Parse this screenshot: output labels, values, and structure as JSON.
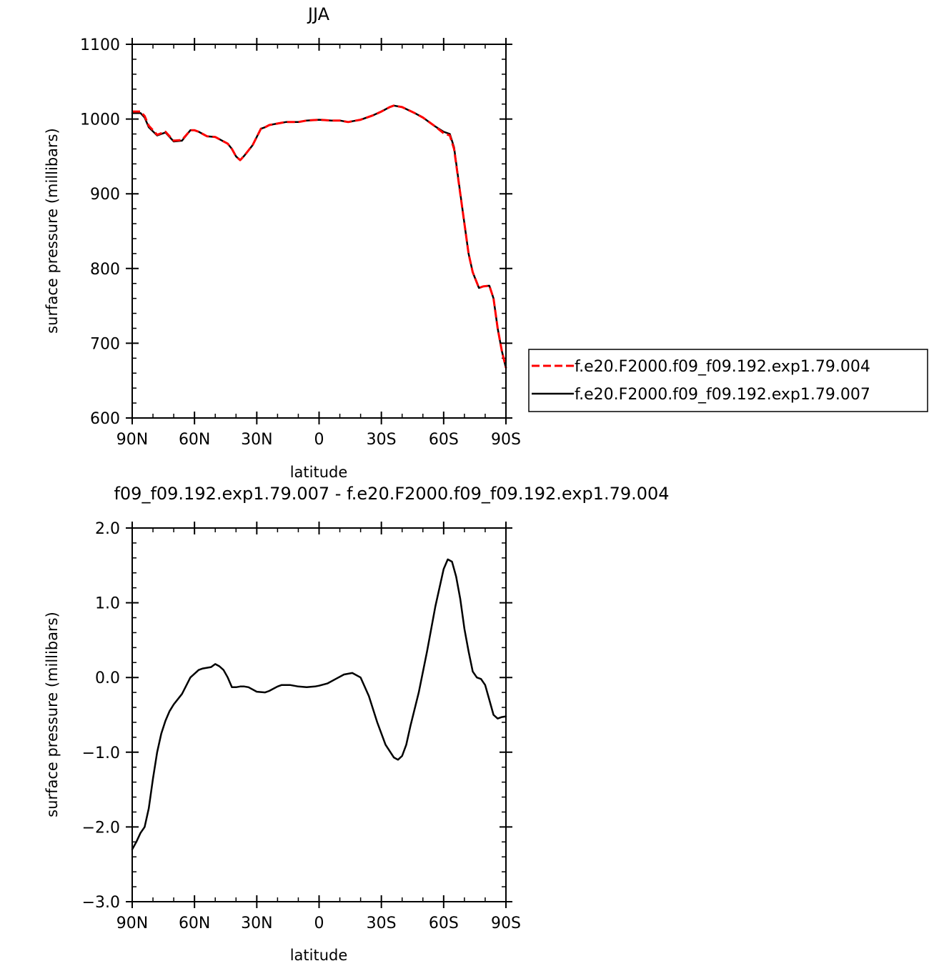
{
  "chart_data": [
    {
      "type": "line",
      "title": "JJA",
      "xlabel": "latitude",
      "ylabel": "surface pressure (millibars)",
      "xlim": [
        90,
        -90
      ],
      "ylim": [
        600,
        1100
      ],
      "x_ticks": [
        90,
        60,
        30,
        0,
        -30,
        -60,
        -90
      ],
      "x_tick_labels": [
        "90N",
        "60N",
        "30N",
        "0",
        "30S",
        "60S",
        "90S"
      ],
      "y_ticks": [
        600,
        700,
        800,
        900,
        1000,
        1100
      ],
      "y_tick_labels": [
        "600",
        "700",
        "800",
        "900",
        "1000",
        "1100"
      ],
      "grid": false,
      "legend_position": "outside-right-bottom",
      "series": [
        {
          "name": "f.e20.F2000.f09_f09.192.exp1.79.004",
          "color": "#ff0000",
          "dash": "dashed",
          "x": [
            90,
            86,
            84,
            82,
            78,
            74,
            72,
            70,
            66,
            62,
            60,
            58,
            54,
            50,
            44,
            42,
            40,
            38,
            36,
            34,
            32,
            28,
            26,
            24,
            20,
            16,
            14,
            10,
            6,
            0,
            -6,
            -10,
            -14,
            -16,
            -20,
            -26,
            -30,
            -34,
            -36,
            -40,
            -46,
            -50,
            -56,
            -60,
            -63,
            -65,
            -67,
            -70,
            -72,
            -74,
            -77,
            -79,
            -82,
            -84,
            -86,
            -88,
            -90
          ],
          "values": [
            1010,
            1010,
            1004,
            991,
            979,
            983,
            977,
            971,
            972,
            985,
            985,
            983,
            977,
            976,
            967,
            960,
            950,
            945,
            951,
            958,
            965,
            987,
            989,
            992,
            994,
            996,
            996,
            996,
            998,
            999,
            998,
            998,
            996,
            997,
            999,
            1005,
            1010,
            1016,
            1018,
            1016,
            1008,
            1002,
            990,
            981,
            978,
            960,
            920,
            860,
            820,
            795,
            774,
            776,
            777,
            760,
            720,
            690,
            667
          ]
        },
        {
          "name": "f.e20.F2000.f09_f09.192.exp1.79.007",
          "color": "#000000",
          "dash": "solid",
          "x": [
            90,
            86,
            84,
            82,
            78,
            74,
            72,
            70,
            66,
            62,
            60,
            58,
            54,
            50,
            44,
            42,
            40,
            38,
            36,
            34,
            32,
            28,
            26,
            24,
            20,
            16,
            14,
            10,
            6,
            0,
            -6,
            -10,
            -14,
            -16,
            -20,
            -26,
            -30,
            -34,
            -36,
            -40,
            -46,
            -50,
            -56,
            -60,
            -63,
            -65,
            -67,
            -70,
            -72,
            -74,
            -77,
            -79,
            -82,
            -84,
            -86,
            -88,
            -90
          ],
          "values": [
            1008,
            1008,
            1002,
            989,
            978,
            982,
            976,
            970,
            971,
            985,
            985,
            983,
            977,
            976,
            967,
            960,
            950,
            945,
            951,
            958,
            965,
            987,
            989,
            992,
            994,
            996,
            996,
            996,
            998,
            999,
            998,
            998,
            996,
            997,
            999,
            1005,
            1010,
            1016,
            1018,
            1016,
            1008,
            1002,
            990,
            983,
            980,
            962,
            921,
            860,
            820,
            795,
            774,
            776,
            777,
            760,
            720,
            690,
            667
          ]
        }
      ]
    },
    {
      "type": "line",
      "title": "f09_f09.192.exp1.79.007 - f.e20.F2000.f09_f09.192.exp1.79.004",
      "xlabel": "latitude",
      "ylabel": "surface pressure (millibars)",
      "xlim": [
        90,
        -90
      ],
      "ylim": [
        -3.0,
        2.0
      ],
      "x_ticks": [
        90,
        60,
        30,
        0,
        -30,
        -60,
        -90
      ],
      "x_tick_labels": [
        "90N",
        "60N",
        "30N",
        "0",
        "30S",
        "60S",
        "90S"
      ],
      "y_ticks": [
        -3.0,
        -2.0,
        -1.0,
        0.0,
        1.0,
        2.0
      ],
      "y_tick_labels": [
        "−3.0",
        "−2.0",
        "−1.0",
        "0.0",
        "1.0",
        "2.0"
      ],
      "grid": false,
      "series": [
        {
          "color": "#000000",
          "dash": "solid",
          "x": [
            90,
            88,
            86,
            84,
            82,
            80,
            78,
            76,
            74,
            72,
            70,
            66,
            62,
            58,
            56,
            54,
            52,
            50,
            48,
            46,
            44,
            42,
            40,
            38,
            36,
            34,
            30,
            26,
            24,
            22,
            20,
            18,
            14,
            10,
            6,
            2,
            0,
            -4,
            -8,
            -12,
            -16,
            -20,
            -24,
            -28,
            -32,
            -36,
            -38,
            -40,
            -42,
            -44,
            -48,
            -52,
            -56,
            -60,
            -62,
            -64,
            -66,
            -68,
            -70,
            -72,
            -74,
            -76,
            -78,
            -80,
            -82,
            -84,
            -86,
            -88,
            -90
          ],
          "values": [
            -2.3,
            -2.2,
            -2.08,
            -2.0,
            -1.75,
            -1.35,
            -1.0,
            -0.75,
            -0.58,
            -0.45,
            -0.36,
            -0.22,
            0.0,
            0.1,
            0.12,
            0.13,
            0.14,
            0.18,
            0.15,
            0.1,
            0.0,
            -0.13,
            -0.13,
            -0.12,
            -0.12,
            -0.13,
            -0.19,
            -0.2,
            -0.18,
            -0.15,
            -0.12,
            -0.1,
            -0.1,
            -0.12,
            -0.13,
            -0.12,
            -0.11,
            -0.08,
            -0.02,
            0.04,
            0.06,
            0.0,
            -0.25,
            -0.6,
            -0.9,
            -1.07,
            -1.1,
            -1.05,
            -0.9,
            -0.65,
            -0.2,
            0.35,
            0.95,
            1.45,
            1.58,
            1.55,
            1.35,
            1.05,
            0.65,
            0.35,
            0.08,
            0.0,
            -0.02,
            -0.1,
            -0.3,
            -0.5,
            -0.55,
            -0.53,
            -0.52
          ]
        }
      ]
    }
  ]
}
